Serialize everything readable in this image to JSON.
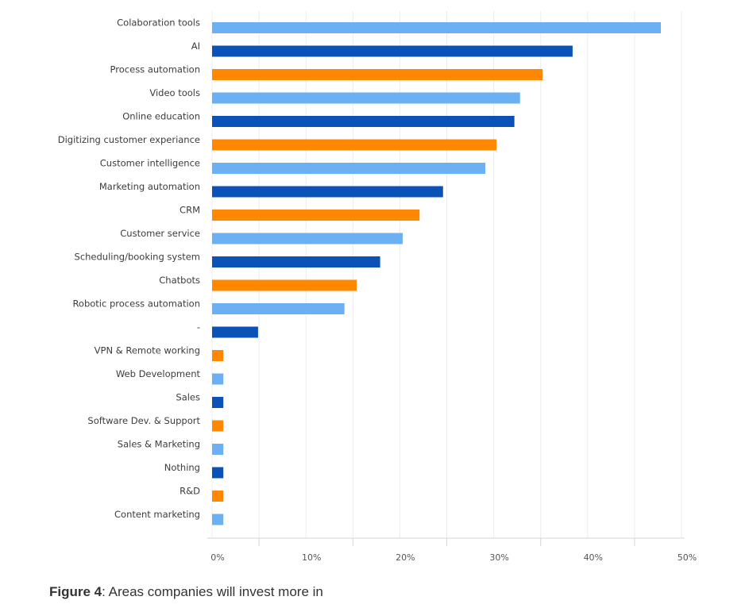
{
  "chart_data": {
    "type": "bar",
    "orientation": "horizontal",
    "categories": [
      "Colaboration tools",
      "AI",
      "Process automation",
      "Video tools",
      "Online education",
      "Digitizing customer experiance",
      "Customer intelligence",
      "Marketing automation",
      "CRM",
      "Customer service",
      "Scheduling/booking system",
      "Chatbots",
      "Robotic process automation",
      "-",
      "VPN & Remote working",
      "Web Development",
      "Sales",
      "Software Dev. & Support",
      "Sales & Marketing",
      "Nothing",
      "R&D",
      "Content marketing"
    ],
    "values": [
      47.8,
      38.4,
      35.2,
      32.8,
      32.2,
      30.3,
      29.1,
      24.6,
      22.1,
      20.3,
      17.9,
      15.4,
      14.1,
      4.9,
      1.2,
      1.2,
      1.2,
      1.2,
      1.2,
      1.2,
      1.2,
      1.2
    ],
    "colors": [
      "#6ab0f3",
      "#0a52b8",
      "#ff8800",
      "#6ab0f3",
      "#0a52b8",
      "#ff8800",
      "#6ab0f3",
      "#0a52b8",
      "#ff8800",
      "#6ab0f3",
      "#0a52b8",
      "#ff8800",
      "#6ab0f3",
      "#0a52b8",
      "#ff8800",
      "#6ab0f3",
      "#0a52b8",
      "#ff8800",
      "#6ab0f3",
      "#0a52b8",
      "#ff8800",
      "#6ab0f3"
    ],
    "xlim": [
      0,
      50
    ],
    "xticks": [
      "0%",
      "10%",
      "20%",
      "30%",
      "40%",
      "50%"
    ],
    "grid": true,
    "title": "",
    "xlabel": "",
    "ylabel": ""
  },
  "caption": {
    "label": "Figure 4",
    "text": ": Areas companies will invest more in"
  }
}
